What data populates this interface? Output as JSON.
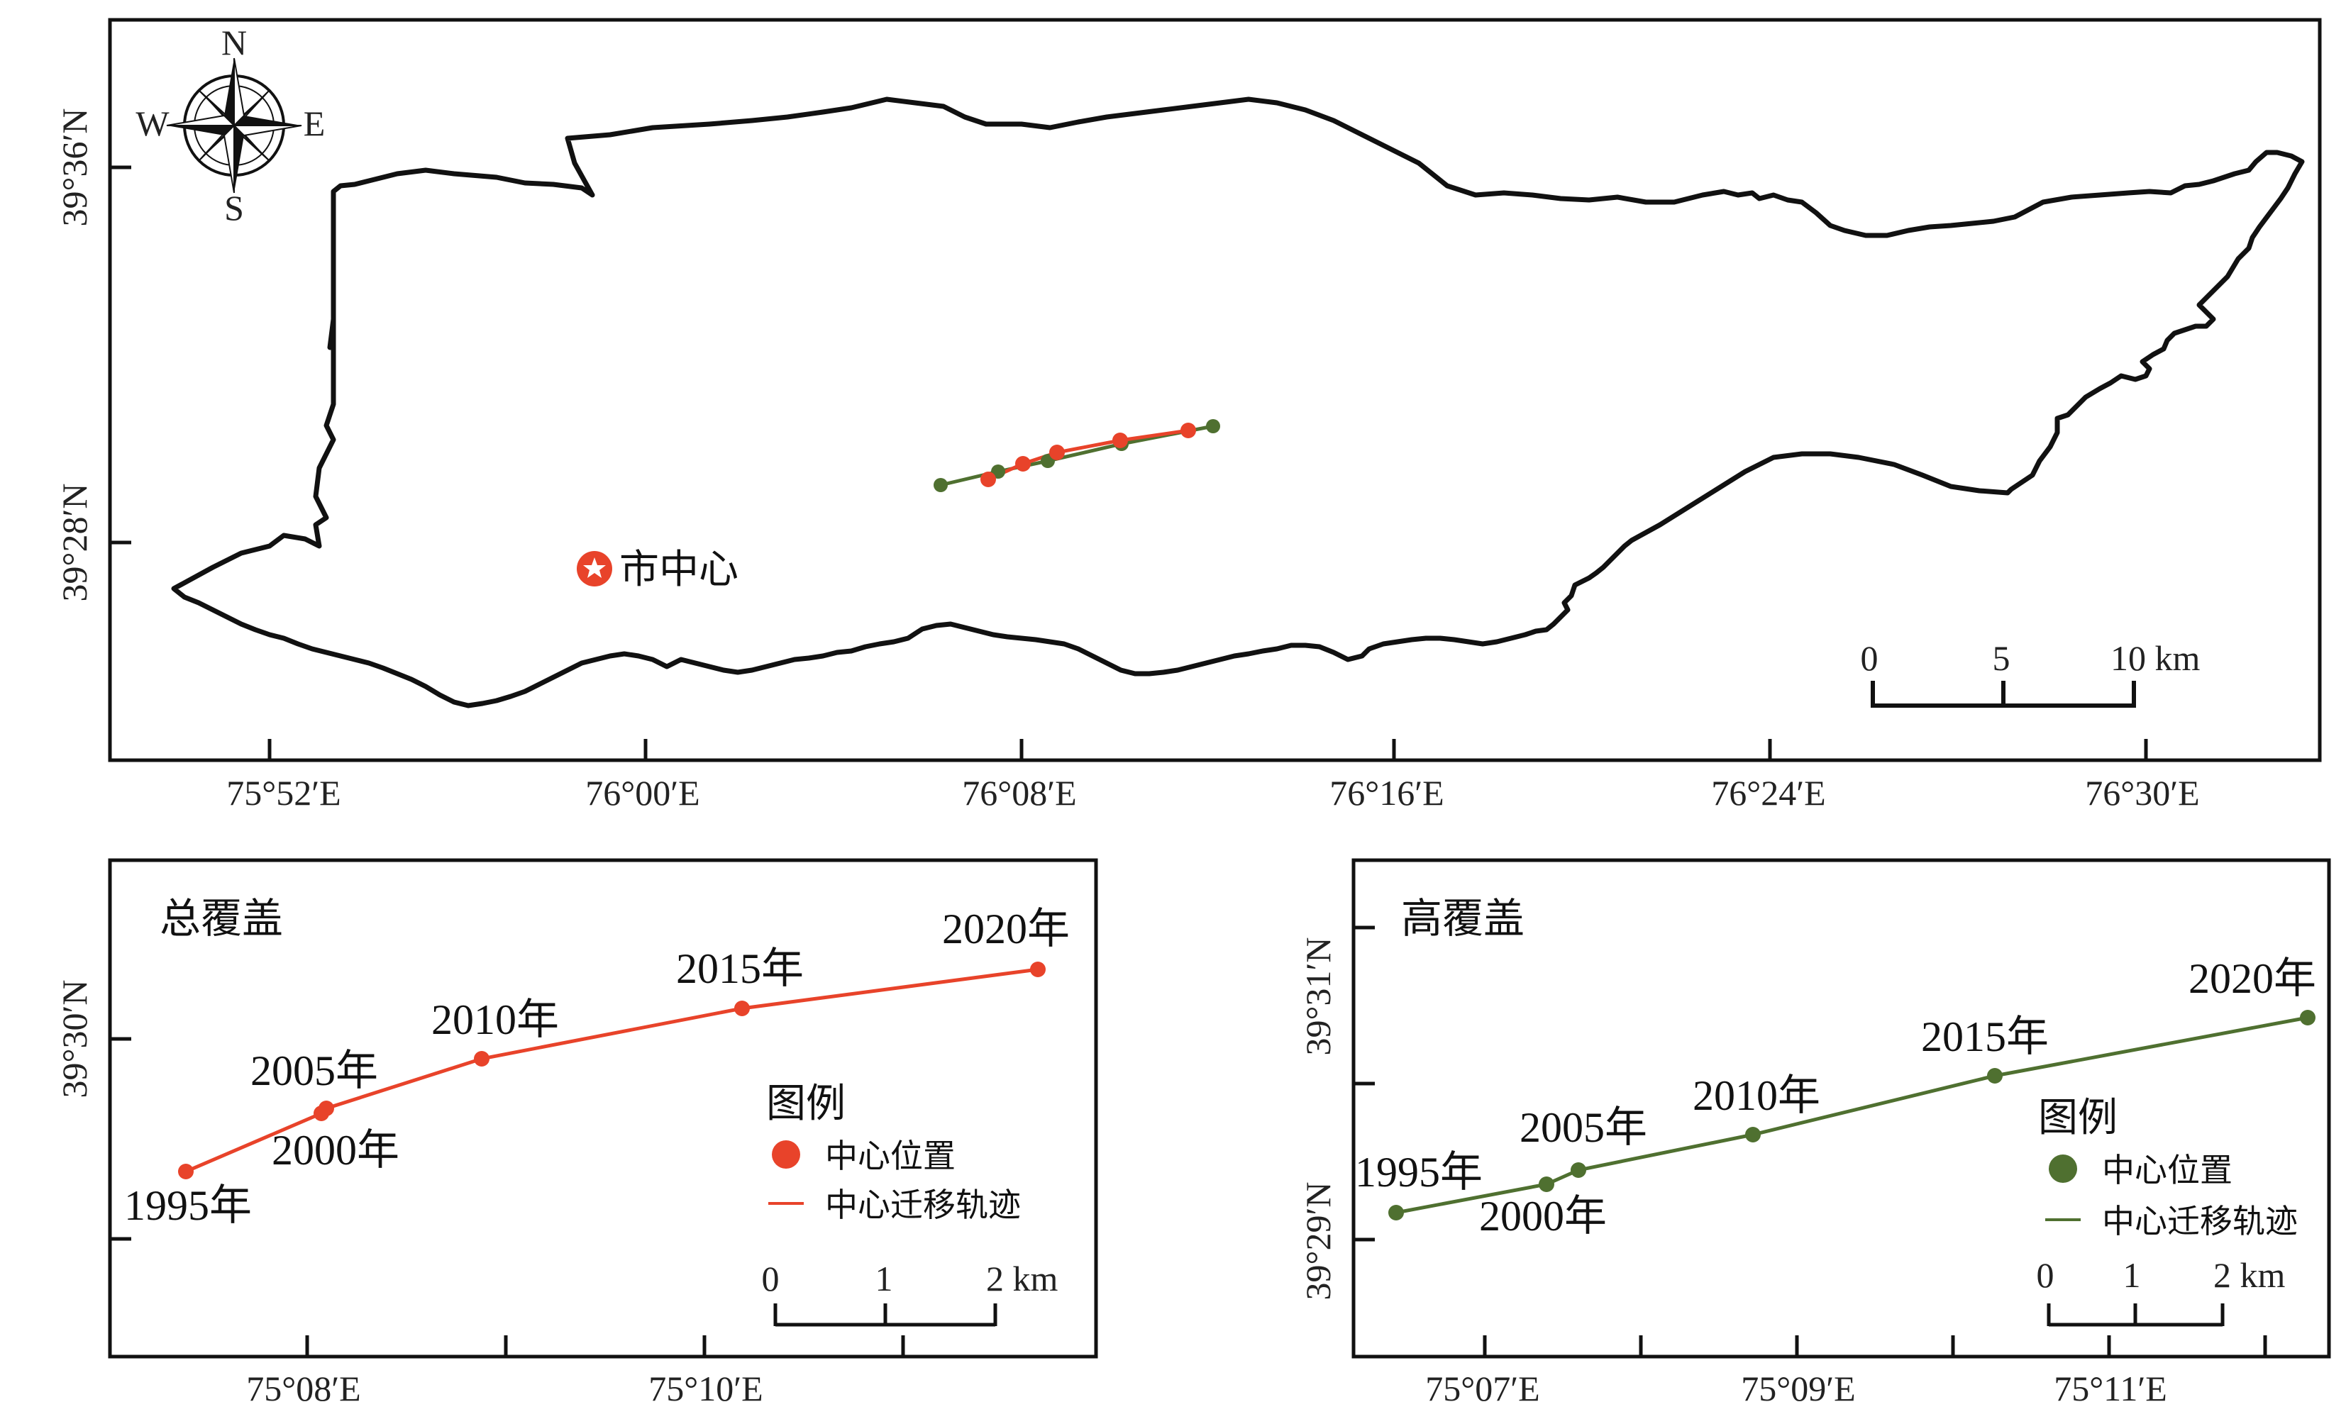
{
  "main_map": {
    "compass": {
      "n": "N",
      "s": "S",
      "e": "E",
      "w": "W"
    },
    "city_center_label": "市中心",
    "lat_labels": [
      "39°36′N",
      "39°28′N"
    ],
    "lon_labels": [
      "75°52′E",
      "76°00′E",
      "76°08′E",
      "76°16′E",
      "76°24′E",
      "76°30′E"
    ],
    "scale": {
      "ticks": [
        "0",
        "5",
        "10 km"
      ]
    },
    "colors": {
      "total": "#e8432a",
      "high": "#4f7030",
      "boundary": "#111111",
      "city_marker": "#e8432a"
    }
  },
  "total_panel": {
    "title": "总覆盖",
    "lat_label": "39°30′N",
    "lon_labels": [
      "75°08′E",
      "75°10′E"
    ],
    "years": [
      "1995年",
      "2000年",
      "2005年",
      "2010年",
      "2015年",
      "2020年"
    ],
    "legend": {
      "title": "图例",
      "point_label": "中心位置",
      "line_label": "中心迁移轨迹"
    },
    "scale": {
      "ticks": [
        "0",
        "1",
        "2 km"
      ]
    }
  },
  "high_panel": {
    "title": "高覆盖",
    "lat_labels": [
      "39°31′N",
      "39°29′N"
    ],
    "lon_labels": [
      "75°07′E",
      "75°09′E",
      "75°11′E"
    ],
    "years": [
      "1995年",
      "2000年",
      "2005年",
      "2010年",
      "2015年",
      "2020年"
    ],
    "legend": {
      "title": "图例",
      "point_label": "中心位置",
      "line_label": "中心迁移轨迹"
    },
    "scale": {
      "ticks": [
        "0",
        "1",
        "2 km"
      ]
    }
  }
}
